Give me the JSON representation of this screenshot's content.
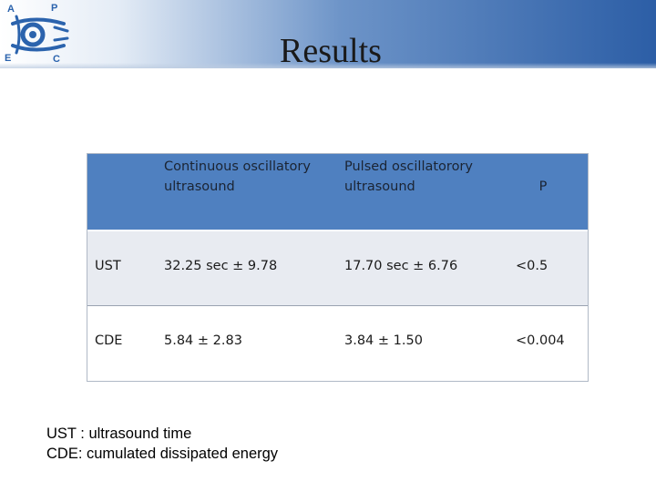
{
  "slide": {
    "title": "Results"
  },
  "logo": {
    "icon": "society-logo-icon",
    "letters": [
      "A",
      "P",
      "E",
      "C"
    ],
    "colors": {
      "primary": "#2b63ad"
    }
  },
  "table": {
    "headers": [
      "",
      "Continuous oscillatory ultrasound",
      "Pulsed oscillatorory ultrasound",
      "P"
    ],
    "rows": [
      {
        "label": "UST",
        "continuous": "32.25 sec ± 9.78",
        "pulsed": "17.70 sec ± 6.76",
        "p": "<0.5"
      },
      {
        "label": "CDE",
        "continuous": "5.84 ± 2.83",
        "pulsed": "3.84 ± 1.50",
        "p": "<0.004"
      }
    ],
    "colors": {
      "header_bg": "#4f80c0",
      "row_alt_bg": "#e8ebf1"
    }
  },
  "footnote": {
    "lines": [
      "UST : ultrasound time",
      "CDE: cumulated dissipated energy"
    ]
  }
}
